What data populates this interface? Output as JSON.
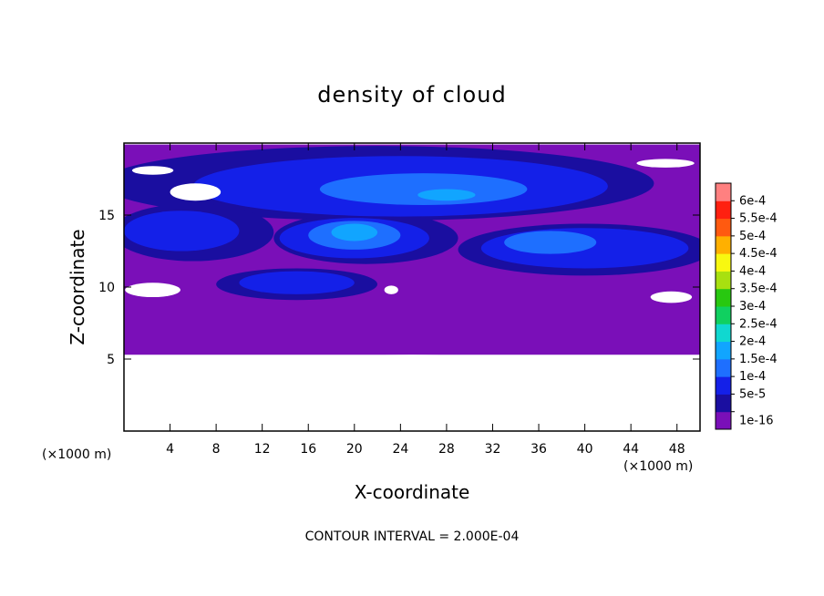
{
  "chart_data": {
    "type": "heatmap",
    "title": "density of cloud",
    "xlabel": "X-coordinate",
    "ylabel": "Z-coordinate",
    "x_unit": "(×1000 m)",
    "y_unit": "(×1000 m)",
    "xlim": [
      0,
      50
    ],
    "ylim": [
      0,
      20
    ],
    "x_ticks": [
      4,
      8,
      12,
      16,
      20,
      24,
      28,
      32,
      36,
      40,
      44,
      48
    ],
    "y_ticks": [
      5,
      10,
      15
    ],
    "footer": "CONTOUR INTERVAL = 2.000E-04",
    "colorbar": {
      "levels": [
        "1e-16",
        "5e-5",
        "1e-4",
        "1.5e-4",
        "2e-4",
        "2.5e-4",
        "3e-4",
        "3.5e-4",
        "4e-4",
        "4.5e-4",
        "5e-4",
        "5.5e-4",
        "6e-4"
      ],
      "colors": [
        "#7a0fb8",
        "#1a0ea0",
        "#1420e8",
        "#1e6fff",
        "#11a5ff",
        "#10d8d0",
        "#10d060",
        "#28c810",
        "#a8e010",
        "#f8f810",
        "#ffb000",
        "#ff5a10",
        "#ff2010",
        "#ff8080"
      ]
    },
    "regions": [
      {
        "level": 0,
        "desc": "background",
        "x": [
          0,
          50
        ],
        "z": [
          5.3,
          19.9
        ]
      },
      {
        "level": 1,
        "cx": 22,
        "cz": 17.2,
        "rx": 24,
        "rz": 2.6
      },
      {
        "level": 1,
        "cx": 6,
        "cz": 13.8,
        "rx": 7,
        "rz": 2.0
      },
      {
        "level": 1,
        "cx": 40,
        "cz": 12.6,
        "rx": 11,
        "rz": 1.8
      },
      {
        "level": 1,
        "cx": 21,
        "cz": 13.4,
        "rx": 8,
        "rz": 1.8
      },
      {
        "level": 1,
        "cx": 15,
        "cz": 10.2,
        "rx": 7,
        "rz": 1.1
      },
      {
        "level": 2,
        "cx": 24,
        "cz": 17.0,
        "rx": 18,
        "rz": 2.1
      },
      {
        "level": 2,
        "cx": 5,
        "cz": 13.9,
        "rx": 5,
        "rz": 1.4
      },
      {
        "level": 2,
        "cx": 40,
        "cz": 12.7,
        "rx": 9,
        "rz": 1.4
      },
      {
        "level": 2,
        "cx": 20,
        "cz": 13.4,
        "rx": 6.5,
        "rz": 1.4
      },
      {
        "level": 2,
        "cx": 15,
        "cz": 10.3,
        "rx": 5,
        "rz": 0.8
      },
      {
        "level": 3,
        "cx": 26,
        "cz": 16.8,
        "rx": 9,
        "rz": 1.1
      },
      {
        "level": 3,
        "cx": 20,
        "cz": 13.6,
        "rx": 4,
        "rz": 1.0
      },
      {
        "level": 3,
        "cx": 37,
        "cz": 13.1,
        "rx": 4,
        "rz": 0.8
      },
      {
        "level": 4,
        "cx": 20,
        "cz": 13.8,
        "rx": 2,
        "rz": 0.6
      },
      {
        "level": 4,
        "cx": 28,
        "cz": 16.4,
        "rx": 2.5,
        "rz": 0.4
      }
    ],
    "gaps": [
      {
        "cx": 25,
        "cz": 2.6,
        "rx": 25,
        "rz": 2.7
      },
      {
        "cx": 6.2,
        "cz": 16.6,
        "rx": 2.2,
        "rz": 0.6
      },
      {
        "cx": 2.5,
        "cz": 18.1,
        "rx": 1.8,
        "rz": 0.3
      },
      {
        "cx": 2.5,
        "cz": 9.8,
        "rx": 2.4,
        "rz": 0.5
      },
      {
        "cx": 47.5,
        "cz": 9.3,
        "rx": 1.8,
        "rz": 0.4
      },
      {
        "cx": 23.2,
        "cz": 9.8,
        "rx": 0.6,
        "rz": 0.3
      },
      {
        "cx": 47,
        "cz": 18.6,
        "rx": 2.5,
        "rz": 0.3
      }
    ]
  }
}
